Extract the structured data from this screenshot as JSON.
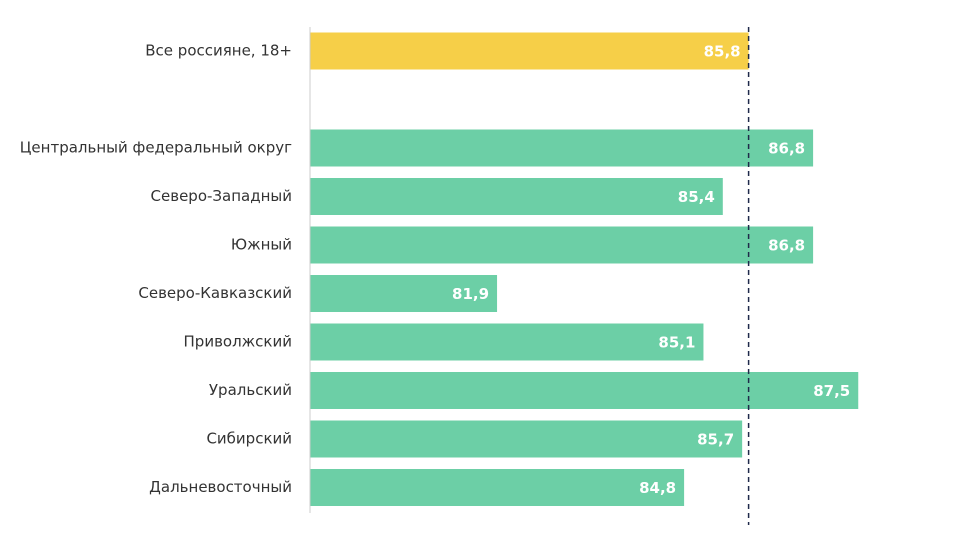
{
  "chart_data": {
    "type": "hbar",
    "categories": [
      "Все россияне, 18+",
      null,
      "Центральный федеральный округ",
      "Северо-Западный",
      "Южный",
      "Северо-Кавказский",
      "Приволжский",
      "Уральский",
      "Сибирский",
      "Дальневосточный"
    ],
    "values": [
      85.8,
      null,
      86.8,
      85.4,
      86.8,
      81.9,
      85.1,
      87.5,
      85.7,
      84.8
    ],
    "value_labels": [
      "85,8",
      null,
      "86,8",
      "85,4",
      "86,8",
      "81,9",
      "85,1",
      "87,5",
      "85,7",
      "84,8"
    ],
    "colors": [
      "#f6cf48",
      null,
      "#6ccfa6",
      "#6ccfa6",
      "#6ccfa6",
      "#6ccfa6",
      "#6ccfa6",
      "#6ccfa6",
      "#6ccfa6",
      "#6ccfa6"
    ],
    "xlim": [
      79,
      89
    ],
    "reference_line": 85.8,
    "reference_color": "#1f2a4a"
  }
}
